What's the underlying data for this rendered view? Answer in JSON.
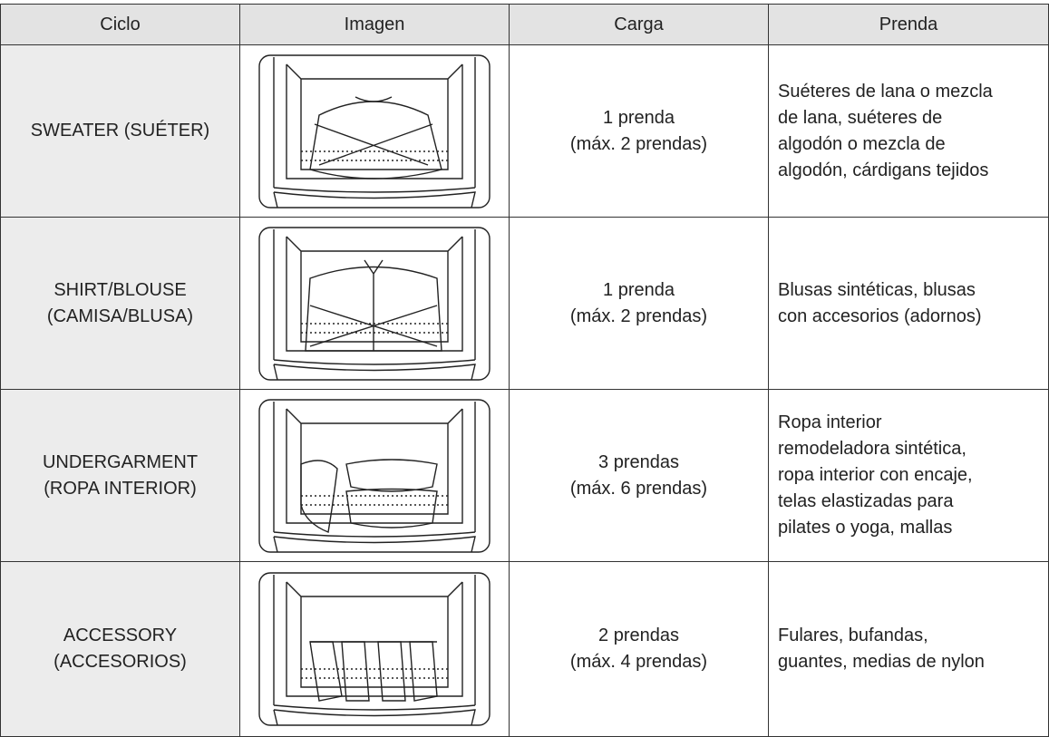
{
  "table": {
    "header": [
      "Ciclo",
      "Imagen",
      "Carga",
      "Prenda"
    ],
    "rows": [
      {
        "ciclo": [
          "SWEATER (SUÉTER)"
        ],
        "carga": [
          "1 prenda",
          "(máx. 2 prendas)"
        ],
        "prenda": [
          "Suéteres de lana o mezcla",
          "de lana, suéteres de",
          "algodón o mezcla de",
          "algodón, cárdigans tejidos"
        ]
      },
      {
        "ciclo": [
          "SHIRT/BLOUSE",
          "(CAMISA/BLUSA)"
        ],
        "carga": [
          "1 prenda",
          "(máx. 2 prendas)"
        ],
        "prenda": [
          "Blusas sintéticas, blusas",
          "con accesorios (adornos)"
        ]
      },
      {
        "ciclo": [
          "UNDERGARMENT",
          "(ROPA INTERIOR)"
        ],
        "carga": [
          "3 prendas",
          "(máx. 6 prendas)"
        ],
        "prenda": [
          "Ropa interior",
          "remodeladora sintética,",
          "ropa interior con encaje,",
          "telas elastizadas para",
          "pilates o yoga, mallas"
        ]
      },
      {
        "ciclo": [
          "ACCESSORY",
          "(ACCESORIOS)"
        ],
        "carga": [
          "2 prendas",
          "(máx. 4 prendas)"
        ],
        "prenda": [
          "Fulares, bufandas,",
          "guantes, medias de nylon"
        ]
      }
    ]
  }
}
